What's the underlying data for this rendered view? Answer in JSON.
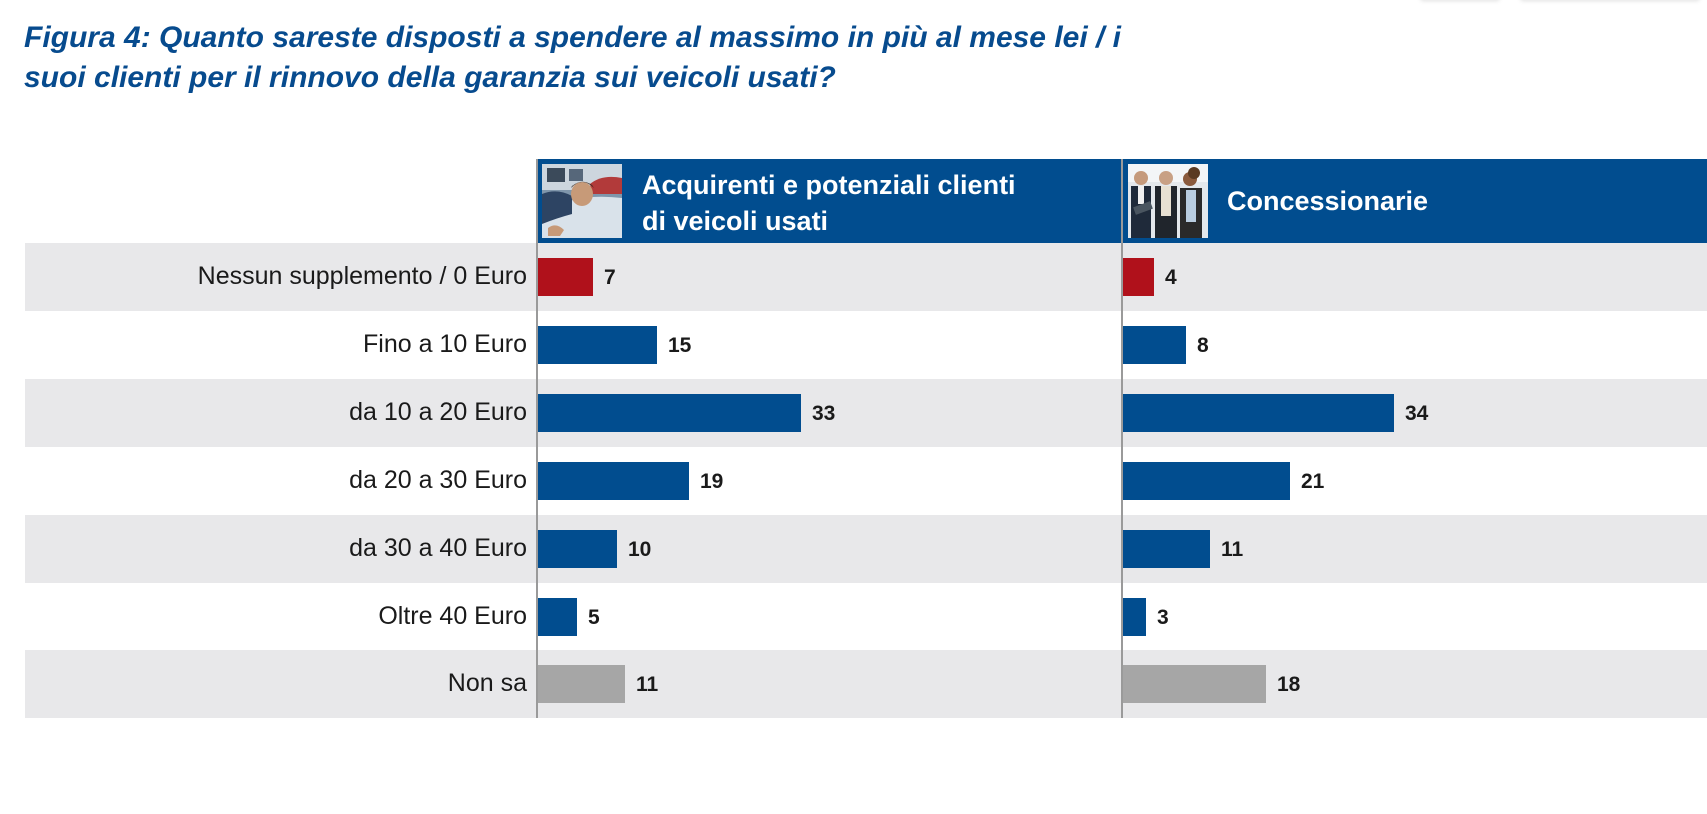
{
  "title": {
    "line1": "Figura 4: Quanto sareste disposti a spendere al massimo in più al mese lei / i",
    "line2": "suoi clienti per il rinnovo della garanzia sui veicoli usati?"
  },
  "colors": {
    "brand_blue": "#014d8f",
    "title_blue": "#074b8e",
    "red": "#b0111b",
    "grey": "#a6a6a6",
    "band": "#e8e8ea"
  },
  "chart_data": {
    "type": "bar",
    "orientation": "horizontal",
    "title": "Figura 4: Quanto sareste disposti a spendere al massimo in più al mese lei / i suoi clienti per il rinnovo della garanzia sui veicoli usati?",
    "categories": [
      "Nessun supplemento / 0 Euro",
      "Fino a 10 Euro",
      "da 10 a 20 Euro",
      "da 20 a 30 Euro",
      "da 30 a 40 Euro",
      "Oltre 40 Euro",
      "Non sa"
    ],
    "bar_color_roles": [
      "red",
      "blue",
      "blue",
      "blue",
      "blue",
      "blue",
      "grey"
    ],
    "series": [
      {
        "name": "Acquirenti e potenziali clienti di veicoli usati",
        "header_line1": "Acquirenti e potenziali clienti",
        "header_line2": "di veicoli usati",
        "icon": "car-buyer-photo-icon",
        "values": [
          7,
          15,
          33,
          19,
          10,
          5,
          11
        ]
      },
      {
        "name": "Concessionarie",
        "header_line1": "Concessionarie",
        "icon": "car-dealers-photo-icon",
        "values": [
          4,
          8,
          34,
          21,
          11,
          3,
          18
        ]
      }
    ],
    "xlim": [
      0,
      70
    ],
    "grid": false,
    "data_labels": true,
    "xlabel": "",
    "ylabel": ""
  }
}
